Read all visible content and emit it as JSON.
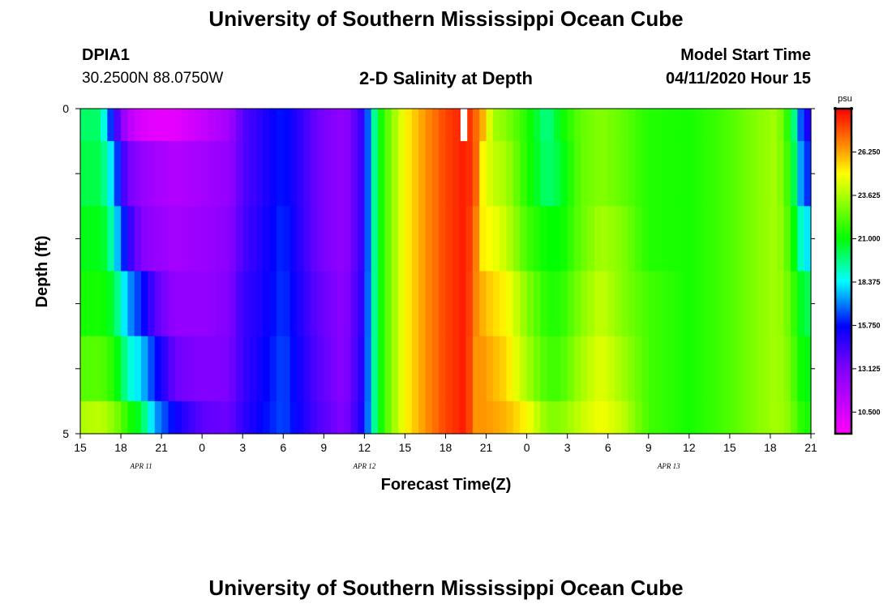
{
  "header": {
    "title": "University of Southern Mississippi Ocean Cube",
    "station_id": "DPIA1",
    "station_coords": "30.2500N 88.0750W",
    "plot_title": "2-D Salinity at Depth",
    "model_start_label": "Model Start Time",
    "model_start_value": "04/11/2020 Hour 15"
  },
  "footer": {
    "title": "University of Southern Mississippi Ocean Cube"
  },
  "chart_data": {
    "type": "heatmap",
    "title": "2-D Salinity at Depth",
    "xlabel": "Forecast Time(Z)",
    "ylabel": "Depth (ft)",
    "ylim": [
      0,
      5
    ],
    "x_hours": [
      0,
      54
    ],
    "x_tick_labels": [
      "15",
      "18",
      "21",
      "0",
      "3",
      "6",
      "9",
      "12",
      "15",
      "18",
      "21",
      "0",
      "3",
      "6",
      "9",
      "12",
      "15",
      "18",
      "21"
    ],
    "y_tick_labels": [
      "0",
      "5"
    ],
    "date_labels": [
      "APR 11",
      "APR 12",
      "APR 13"
    ],
    "date_label_hours": [
      4.5,
      21,
      43.5
    ],
    "colorbar": {
      "unit": "psu",
      "min": 9.19,
      "max": 28.88,
      "labels": [
        "26.250",
        "23.625",
        "21.000",
        "18.375",
        "15.750",
        "13.125",
        "10.500"
      ]
    },
    "depth_rows": [
      0.25,
      1.0,
      2.0,
      3.0,
      4.0,
      4.75
    ],
    "row_boundaries": [
      0,
      0.5,
      1.5,
      2.5,
      3.5,
      4.5,
      5
    ],
    "missing_data": [
      {
        "hour_start": 28.1,
        "hour_end": 28.6,
        "row": 0
      }
    ],
    "salinity_profile": [
      [
        0,
        20.0,
        20.3,
        20.8,
        21.3,
        22.3,
        23.6
      ],
      [
        1.5,
        20.0,
        20.3,
        20.8,
        21.3,
        22.3,
        23.9
      ],
      [
        2.0,
        17.5,
        19.0,
        20.3,
        21.0,
        22.0,
        23.5
      ],
      [
        2.5,
        15.0,
        17.5,
        18.5,
        20.3,
        21.3,
        23.0
      ],
      [
        3.0,
        13.0,
        15.0,
        17.0,
        19.0,
        20.5,
        22.5
      ],
      [
        3.5,
        11.5,
        13.5,
        15.0,
        17.5,
        19.0,
        21.5
      ],
      [
        4.5,
        10.3,
        12.5,
        13.0,
        16.0,
        18.0,
        20.5
      ],
      [
        5.5,
        10.0,
        12.0,
        12.5,
        14.0,
        16.0,
        17.5
      ],
      [
        7.0,
        10.0,
        11.5,
        12.0,
        12.5,
        13.5,
        15.5
      ],
      [
        9.0,
        11.0,
        12.0,
        12.3,
        12.5,
        13.0,
        13.8
      ],
      [
        11.0,
        12.0,
        12.5,
        12.8,
        13.0,
        13.2,
        13.5
      ],
      [
        12.0,
        14.0,
        14.0,
        14.2,
        14.5,
        14.5,
        14.7
      ],
      [
        13.5,
        15.0,
        15.0,
        15.2,
        15.3,
        15.5,
        15.7
      ],
      [
        15.0,
        16.0,
        16.0,
        16.2,
        16.3,
        16.5,
        16.5
      ],
      [
        17.5,
        13.5,
        13.5,
        13.5,
        13.8,
        14.0,
        14.2
      ],
      [
        19.5,
        12.5,
        12.5,
        12.5,
        12.7,
        12.8,
        13.0
      ],
      [
        21.0,
        15.0,
        15.0,
        15.0,
        15.2,
        15.3,
        15.5
      ],
      [
        21.6,
        19.0,
        19.0,
        19.0,
        19.0,
        19.0,
        19.0
      ],
      [
        22.3,
        21.5,
        21.5,
        21.5,
        21.5,
        21.5,
        21.5
      ],
      [
        23.0,
        23.0,
        23.0,
        23.0,
        23.0,
        23.0,
        23.0
      ],
      [
        24.0,
        25.0,
        25.0,
        25.0,
        25.0,
        25.0,
        25.0
      ],
      [
        25.5,
        26.5,
        26.5,
        26.5,
        26.5,
        26.5,
        26.5
      ],
      [
        27.0,
        27.8,
        27.8,
        27.8,
        27.8,
        27.8,
        27.8
      ],
      [
        28.5,
        28.5,
        28.5,
        28.5,
        28.5,
        28.5,
        28.5
      ],
      [
        29.2,
        27.3,
        27.5,
        27.0,
        26.8,
        26.5,
        26.5
      ],
      [
        29.8,
        26.0,
        24.8,
        25.0,
        26.0,
        26.5,
        26.5
      ],
      [
        30.5,
        23.5,
        24.0,
        24.8,
        25.5,
        26.0,
        26.3
      ],
      [
        31.5,
        23.0,
        23.5,
        24.0,
        25.0,
        25.5,
        26.0
      ],
      [
        33.0,
        21.5,
        21.5,
        22.0,
        23.0,
        23.5,
        25.0
      ],
      [
        34.5,
        19.5,
        19.8,
        21.0,
        21.5,
        22.0,
        23.0
      ],
      [
        35.5,
        21.0,
        20.5,
        21.0,
        21.5,
        22.0,
        23.0
      ],
      [
        37.0,
        22.5,
        22.5,
        22.5,
        23.0,
        23.5,
        24.0
      ],
      [
        38.5,
        23.0,
        23.0,
        23.5,
        24.0,
        24.5,
        24.8
      ],
      [
        40.0,
        22.5,
        22.5,
        23.0,
        23.0,
        23.5,
        24.0
      ],
      [
        42.0,
        21.5,
        21.5,
        21.5,
        22.0,
        22.0,
        22.0
      ],
      [
        45.0,
        21.3,
        21.3,
        21.3,
        21.3,
        21.3,
        21.3
      ],
      [
        47.5,
        22.0,
        22.0,
        22.0,
        22.0,
        22.0,
        22.0
      ],
      [
        50.0,
        23.0,
        23.0,
        23.0,
        23.0,
        23.0,
        23.0
      ],
      [
        51.5,
        23.5,
        23.5,
        23.5,
        23.5,
        23.5,
        23.5
      ],
      [
        52.5,
        21.0,
        21.5,
        22.0,
        22.5,
        22.8,
        23.0
      ],
      [
        53.0,
        18.5,
        19.0,
        20.0,
        21.0,
        21.5,
        22.0
      ],
      [
        53.4,
        15.5,
        16.5,
        18.5,
        20.5,
        21.0,
        21.5
      ],
      [
        54.0,
        15.0,
        16.0,
        18.0,
        20.0,
        20.8,
        21.3
      ]
    ]
  }
}
